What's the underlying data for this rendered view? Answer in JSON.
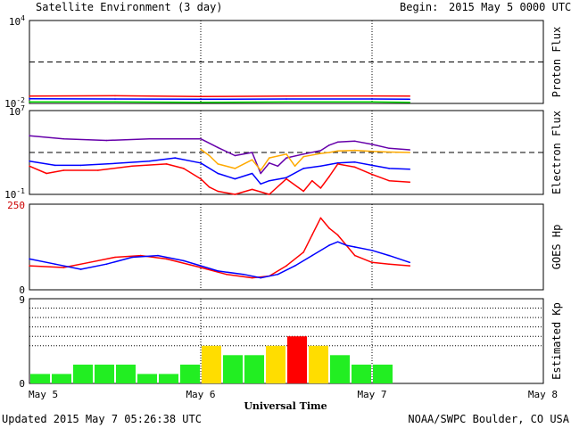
{
  "header": {
    "title": "Satellite Environment (3 day)",
    "begin_label": "Begin:",
    "begin_value": "2015 May 5 0000 UTC"
  },
  "footer": {
    "updated": "Updated 2015 May  7 05:26:38 UTC",
    "credit": "NOAA/SWPC Boulder, CO USA"
  },
  "x_axis": {
    "title": "Universal Time",
    "range_days": [
      0,
      3
    ],
    "ticks": [
      {
        "label": "May 5",
        "day": 0
      },
      {
        "label": "May 6",
        "day": 1
      },
      {
        "label": "May 7",
        "day": 2
      },
      {
        "label": "May 8",
        "day": 3
      }
    ]
  },
  "colors": {
    "red": "#ff0000",
    "blue": "#0000ff",
    "green": "#00dd00",
    "purple": "#6600aa",
    "orange": "#ffaa00",
    "kp_green": "#22ee22",
    "kp_yellow": "#ffdd00",
    "kp_red": "#ff0000",
    "hp_top_label": "#cc0000"
  },
  "chart_data": [
    {
      "type": "line",
      "ylabel": "Proton Flux",
      "y_scale": "log",
      "ylim": [
        0.01,
        10000
      ],
      "y_tick_labels": [
        {
          "base": "10",
          "exp": "4",
          "value": 10000
        },
        {
          "base": "10",
          "exp": "-2",
          "value": 0.01
        }
      ],
      "threshold": 10,
      "gap_days": [
        [
          0.74,
          0.75
        ],
        [
          1.9,
          1.93
        ]
      ],
      "data_end_day": 2.22,
      "series": [
        {
          "color": "red",
          "x": [
            0,
            0.5,
            1.0,
            1.5,
            2.0,
            2.22
          ],
          "y": [
            0.034,
            0.036,
            0.032,
            0.034,
            0.035,
            0.034
          ]
        },
        {
          "color": "blue",
          "x": [
            0,
            0.5,
            1.0,
            1.5,
            2.0,
            2.22
          ],
          "y": [
            0.022,
            0.021,
            0.02,
            0.021,
            0.021,
            0.02
          ]
        },
        {
          "color": "green",
          "x": [
            0,
            0.5,
            1.0,
            1.5,
            2.0,
            2.22
          ],
          "y": [
            0.013,
            0.013,
            0.012,
            0.013,
            0.013,
            0.012
          ]
        }
      ]
    },
    {
      "type": "line",
      "ylabel": "Electron Flux",
      "y_scale": "log",
      "ylim": [
        0.1,
        10000000
      ],
      "y_tick_labels": [
        {
          "base": "10",
          "exp": "7",
          "value": 10000000
        },
        {
          "base": "10",
          "exp": "-1",
          "value": 0.1
        }
      ],
      "threshold": 1000,
      "data_end_day": 2.22,
      "series": [
        {
          "color": "purple",
          "x": [
            0,
            0.2,
            0.45,
            0.7,
            1.0,
            1.1,
            1.2,
            1.3,
            1.35,
            1.4,
            1.45,
            1.5,
            1.6,
            1.7,
            1.75,
            1.8,
            1.9,
            2.0,
            2.1,
            2.22
          ],
          "y": [
            40000,
            20000,
            14000,
            20000,
            20000,
            3000,
            500,
            1000,
            10,
            100,
            50,
            300,
            700,
            1500,
            5000,
            10000,
            12000,
            6000,
            2500,
            1800
          ]
        },
        {
          "color": "orange",
          "x": [
            1.0,
            1.05,
            1.1,
            1.2,
            1.3,
            1.35,
            1.4,
            1.5,
            1.55,
            1.6,
            1.7,
            1.75,
            1.8,
            1.9,
            2.0,
            2.1,
            2.22
          ],
          "y": [
            2000,
            500,
            80,
            30,
            200,
            20,
            300,
            700,
            50,
            400,
            800,
            1000,
            1400,
            1600,
            1300,
            1100,
            1000
          ]
        },
        {
          "color": "blue",
          "x": [
            0,
            0.15,
            0.3,
            0.5,
            0.7,
            0.85,
            1.0,
            1.1,
            1.2,
            1.3,
            1.35,
            1.4,
            1.5,
            1.6,
            1.7,
            1.8,
            1.9,
            2.0,
            2.1,
            2.22
          ],
          "y": [
            150,
            60,
            60,
            90,
            150,
            300,
            100,
            10,
            3,
            10,
            1,
            2,
            4,
            30,
            50,
            100,
            120,
            60,
            30,
            25
          ]
        },
        {
          "color": "red",
          "x": [
            0,
            0.1,
            0.2,
            0.4,
            0.6,
            0.8,
            0.9,
            1.0,
            1.05,
            1.1,
            1.2,
            1.3,
            1.4,
            1.5,
            1.6,
            1.65,
            1.7,
            1.75,
            1.8,
            1.9,
            2.0,
            2.1,
            2.22
          ],
          "y": [
            50,
            10,
            20,
            20,
            50,
            80,
            30,
            3,
            0.5,
            0.2,
            0.1,
            0.3,
            0.1,
            3,
            0.2,
            2,
            0.4,
            5,
            80,
            40,
            8,
            2,
            1.5
          ]
        }
      ]
    },
    {
      "type": "line",
      "ylabel": "GOES Hp",
      "ylim": [
        0,
        250
      ],
      "y_tick_labels": [
        {
          "label": "250",
          "value": 250
        },
        {
          "label": "0",
          "value": 0
        }
      ],
      "data_end_day": 2.22,
      "series": [
        {
          "color": "red",
          "x": [
            0,
            0.2,
            0.35,
            0.5,
            0.65,
            0.8,
            1.0,
            1.15,
            1.3,
            1.4,
            1.5,
            1.6,
            1.65,
            1.7,
            1.75,
            1.8,
            1.85,
            1.9,
            2.0,
            2.1,
            2.22
          ],
          "y": [
            70,
            65,
            80,
            95,
            100,
            90,
            65,
            45,
            35,
            40,
            70,
            110,
            160,
            210,
            180,
            160,
            130,
            100,
            80,
            75,
            70
          ]
        },
        {
          "color": "blue",
          "x": [
            0,
            0.15,
            0.3,
            0.45,
            0.6,
            0.75,
            0.9,
            1.0,
            1.1,
            1.25,
            1.35,
            1.45,
            1.55,
            1.65,
            1.75,
            1.8,
            1.85,
            1.9,
            2.0,
            2.1,
            2.22
          ],
          "y": [
            90,
            75,
            60,
            75,
            95,
            100,
            85,
            70,
            55,
            45,
            35,
            45,
            70,
            100,
            130,
            140,
            130,
            125,
            115,
            100,
            80
          ]
        }
      ]
    },
    {
      "type": "bar",
      "ylabel": "Estimated Kp",
      "ylim": [
        0,
        9
      ],
      "y_tick_labels": [
        {
          "label": "9",
          "value": 9
        },
        {
          "label": "0",
          "value": 0
        }
      ],
      "dotted_levels": [
        4,
        5,
        6,
        7,
        8,
        9
      ],
      "bar_width_days": 0.125,
      "values": [
        1,
        1,
        2,
        2,
        2,
        1,
        1,
        2,
        4,
        3,
        3,
        4,
        5,
        4,
        3,
        2,
        2
      ],
      "category_colors": [
        "kp_green",
        "kp_green",
        "kp_green",
        "kp_green",
        "kp_green",
        "kp_green",
        "kp_green",
        "kp_green",
        "kp_yellow",
        "kp_green",
        "kp_green",
        "kp_yellow",
        "kp_red",
        "kp_yellow",
        "kp_green",
        "kp_green",
        "kp_green"
      ]
    }
  ]
}
